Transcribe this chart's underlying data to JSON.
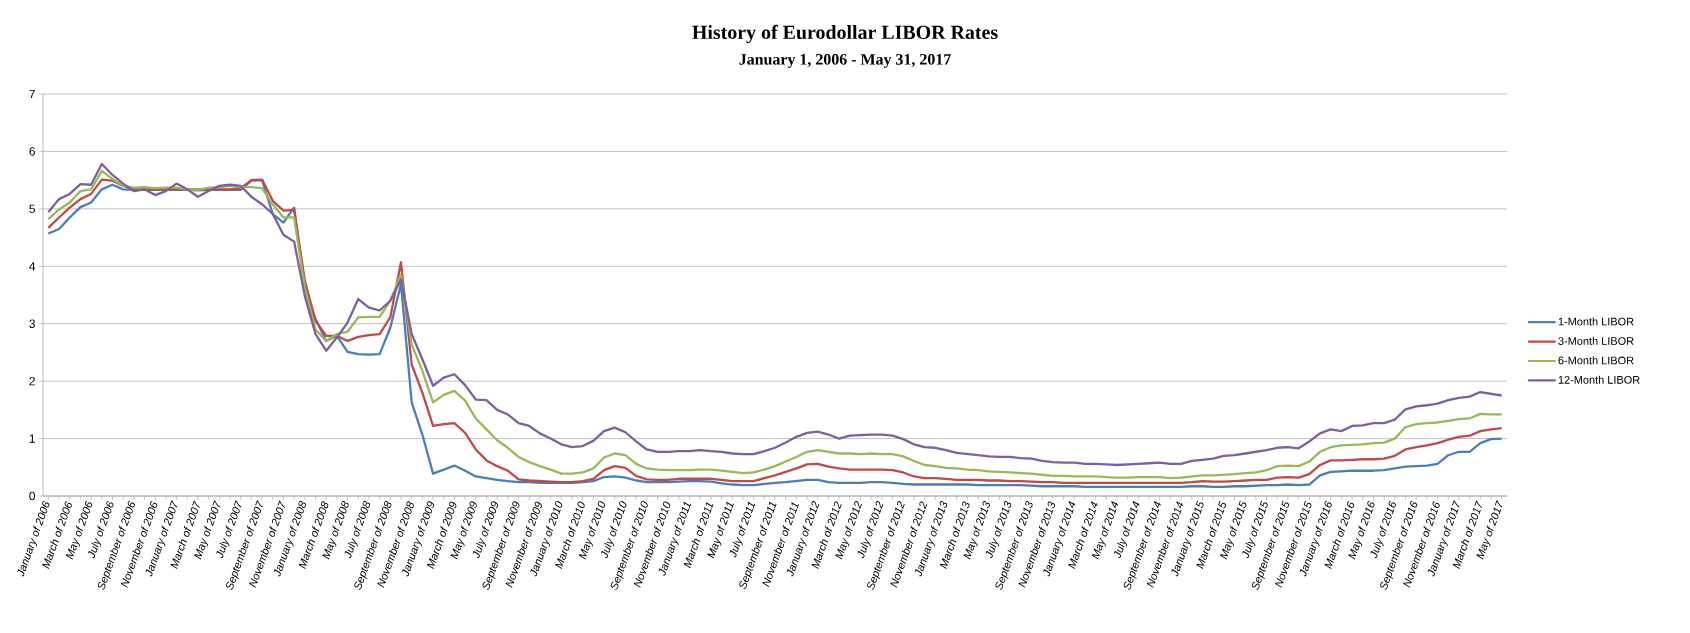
{
  "chart_data": {
    "type": "line",
    "title": "History of Eurodollar LIBOR Rates",
    "subtitle": "January 1, 2006 - May 31, 2017",
    "categories": [
      "January of 2006",
      null,
      "March of 2006",
      null,
      "May of 2006",
      null,
      "July of 2006",
      null,
      "September of 2006",
      null,
      "November of 2006",
      null,
      "January of 2007",
      null,
      "March of 2007",
      null,
      "May of 2007",
      null,
      "July of 2007",
      null,
      "September of 2007",
      null,
      "November of 2007",
      null,
      "January of 2008",
      null,
      "March of 2008",
      null,
      "May of 2008",
      null,
      "July of 2008",
      null,
      "September of 2008",
      null,
      "November of 2008",
      null,
      "January of 2009",
      null,
      "March of 2009",
      null,
      "May of 2009",
      null,
      "July of 2009",
      null,
      "September of 2009",
      null,
      "November of 2009",
      null,
      "January of 2010",
      null,
      "March of 2010",
      null,
      "May of 2010",
      null,
      "July of 2010",
      null,
      "September of 2010",
      null,
      "November of 2010",
      null,
      "January of 2011",
      null,
      "March of 2011",
      null,
      "May of 2011",
      null,
      "July of 2011",
      null,
      "September of 2011",
      null,
      "November of 2011",
      null,
      "January of 2012",
      null,
      "March of 2012",
      null,
      "May of 2012",
      null,
      "July of 2012",
      null,
      "September of 2012",
      null,
      "November of 2012",
      null,
      "January of 2013",
      null,
      "March of 2013",
      null,
      "May of 2013",
      null,
      "July of 2013",
      null,
      "September of 2013",
      null,
      "November of 2013",
      null,
      "January of 2014",
      null,
      "March of 2014",
      null,
      "May of 2014",
      null,
      "July of 2014",
      null,
      "September of 2014",
      null,
      "November of 2014",
      null,
      "January of 2015",
      null,
      "March of 2015",
      null,
      "May of 2015",
      null,
      "July of 2015",
      null,
      "September of 2015",
      null,
      "November of 2015",
      null,
      "January of 2016",
      null,
      "March of 2016",
      null,
      "May of 2016",
      null,
      "July of 2016",
      null,
      "September of 2016",
      null,
      "November of 2016",
      null,
      "January of 2017",
      null,
      "March of 2017",
      null,
      "May of 2017"
    ],
    "series": [
      {
        "name": "1-Month LIBOR",
        "color": "#4a7ebb",
        "values": [
          4.57,
          4.65,
          4.85,
          5.03,
          5.11,
          5.34,
          5.42,
          5.34,
          5.33,
          5.33,
          5.33,
          5.33,
          5.33,
          5.33,
          5.32,
          5.33,
          5.33,
          5.33,
          5.33,
          5.49,
          5.5,
          4.91,
          4.76,
          5.02,
          3.63,
          3.08,
          2.7,
          2.79,
          2.51,
          2.47,
          2.46,
          2.47,
          2.93,
          3.69,
          1.63,
          1.07,
          0.39,
          0.46,
          0.53,
          0.44,
          0.34,
          0.31,
          0.28,
          0.26,
          0.24,
          0.24,
          0.23,
          0.23,
          0.23,
          0.23,
          0.24,
          0.26,
          0.33,
          0.34,
          0.32,
          0.27,
          0.24,
          0.24,
          0.24,
          0.25,
          0.26,
          0.26,
          0.25,
          0.22,
          0.2,
          0.19,
          0.19,
          0.21,
          0.23,
          0.24,
          0.26,
          0.28,
          0.28,
          0.24,
          0.23,
          0.23,
          0.23,
          0.24,
          0.24,
          0.23,
          0.21,
          0.2,
          0.2,
          0.2,
          0.2,
          0.2,
          0.2,
          0.19,
          0.19,
          0.19,
          0.19,
          0.19,
          0.18,
          0.17,
          0.17,
          0.17,
          0.17,
          0.16,
          0.16,
          0.16,
          0.16,
          0.16,
          0.16,
          0.16,
          0.16,
          0.16,
          0.16,
          0.17,
          0.17,
          0.16,
          0.16,
          0.17,
          0.17,
          0.18,
          0.19,
          0.19,
          0.2,
          0.19,
          0.2,
          0.36,
          0.42,
          0.43,
          0.44,
          0.44,
          0.44,
          0.45,
          0.48,
          0.51,
          0.52,
          0.53,
          0.56,
          0.71,
          0.77,
          0.77,
          0.92,
          0.99,
          1.0
        ]
      },
      {
        "name": "3-Month LIBOR",
        "color": "#be4b48",
        "values": [
          4.67,
          4.85,
          5.02,
          5.17,
          5.26,
          5.51,
          5.49,
          5.4,
          5.34,
          5.34,
          5.34,
          5.34,
          5.34,
          5.34,
          5.34,
          5.34,
          5.34,
          5.34,
          5.36,
          5.5,
          5.51,
          5.14,
          4.97,
          4.98,
          3.75,
          3.05,
          2.79,
          2.79,
          2.7,
          2.77,
          2.8,
          2.82,
          3.11,
          4.07,
          2.29,
          1.8,
          1.22,
          1.25,
          1.27,
          1.1,
          0.81,
          0.62,
          0.52,
          0.44,
          0.29,
          0.27,
          0.26,
          0.25,
          0.24,
          0.24,
          0.26,
          0.3,
          0.45,
          0.52,
          0.49,
          0.35,
          0.29,
          0.28,
          0.28,
          0.3,
          0.3,
          0.3,
          0.3,
          0.28,
          0.26,
          0.26,
          0.26,
          0.31,
          0.36,
          0.42,
          0.48,
          0.55,
          0.56,
          0.51,
          0.48,
          0.46,
          0.46,
          0.46,
          0.46,
          0.45,
          0.41,
          0.34,
          0.31,
          0.31,
          0.3,
          0.28,
          0.28,
          0.28,
          0.27,
          0.27,
          0.26,
          0.26,
          0.25,
          0.24,
          0.24,
          0.23,
          0.23,
          0.23,
          0.23,
          0.23,
          0.23,
          0.23,
          0.23,
          0.23,
          0.23,
          0.23,
          0.23,
          0.24,
          0.26,
          0.25,
          0.25,
          0.26,
          0.27,
          0.28,
          0.28,
          0.32,
          0.33,
          0.32,
          0.38,
          0.54,
          0.62,
          0.62,
          0.63,
          0.64,
          0.64,
          0.65,
          0.7,
          0.81,
          0.85,
          0.88,
          0.92,
          0.98,
          1.03,
          1.05,
          1.13,
          1.16,
          1.18
        ]
      },
      {
        "name": "6-Month LIBOR",
        "color": "#98b954",
        "values": [
          4.82,
          4.99,
          5.11,
          5.31,
          5.34,
          5.66,
          5.52,
          5.4,
          5.37,
          5.38,
          5.36,
          5.37,
          5.37,
          5.34,
          5.33,
          5.37,
          5.38,
          5.4,
          5.38,
          5.38,
          5.36,
          5.08,
          4.85,
          4.85,
          3.63,
          2.9,
          2.7,
          2.82,
          2.86,
          3.11,
          3.12,
          3.12,
          3.4,
          3.86,
          2.64,
          2.18,
          1.63,
          1.76,
          1.83,
          1.66,
          1.35,
          1.16,
          0.97,
          0.84,
          0.68,
          0.59,
          0.52,
          0.46,
          0.39,
          0.39,
          0.41,
          0.48,
          0.67,
          0.74,
          0.71,
          0.56,
          0.48,
          0.46,
          0.45,
          0.45,
          0.45,
          0.46,
          0.46,
          0.44,
          0.42,
          0.4,
          0.41,
          0.46,
          0.52,
          0.6,
          0.68,
          0.77,
          0.8,
          0.77,
          0.74,
          0.74,
          0.73,
          0.74,
          0.73,
          0.73,
          0.69,
          0.61,
          0.54,
          0.52,
          0.49,
          0.48,
          0.46,
          0.45,
          0.43,
          0.42,
          0.41,
          0.4,
          0.39,
          0.37,
          0.35,
          0.35,
          0.34,
          0.34,
          0.34,
          0.33,
          0.32,
          0.32,
          0.33,
          0.33,
          0.33,
          0.31,
          0.32,
          0.34,
          0.36,
          0.36,
          0.37,
          0.38,
          0.4,
          0.41,
          0.45,
          0.52,
          0.53,
          0.52,
          0.6,
          0.77,
          0.85,
          0.88,
          0.89,
          0.9,
          0.92,
          0.93,
          1.0,
          1.2,
          1.25,
          1.27,
          1.28,
          1.31,
          1.34,
          1.35,
          1.43,
          1.42,
          1.42
        ]
      },
      {
        "name": "12-Month LIBOR",
        "color": "#7d60a0",
        "values": [
          4.94,
          5.17,
          5.26,
          5.43,
          5.42,
          5.78,
          5.59,
          5.44,
          5.31,
          5.34,
          5.24,
          5.31,
          5.44,
          5.34,
          5.21,
          5.31,
          5.4,
          5.42,
          5.4,
          5.21,
          5.08,
          4.91,
          4.55,
          4.43,
          3.48,
          2.82,
          2.53,
          2.76,
          3.02,
          3.43,
          3.28,
          3.23,
          3.4,
          3.77,
          2.82,
          2.38,
          1.92,
          2.06,
          2.12,
          1.93,
          1.68,
          1.67,
          1.5,
          1.42,
          1.27,
          1.22,
          1.09,
          1.0,
          0.9,
          0.85,
          0.87,
          0.96,
          1.13,
          1.19,
          1.11,
          0.95,
          0.81,
          0.77,
          0.77,
          0.78,
          0.78,
          0.8,
          0.78,
          0.77,
          0.74,
          0.73,
          0.73,
          0.78,
          0.84,
          0.93,
          1.03,
          1.1,
          1.12,
          1.07,
          1.0,
          1.05,
          1.06,
          1.07,
          1.07,
          1.05,
          0.99,
          0.9,
          0.85,
          0.84,
          0.8,
          0.75,
          0.73,
          0.71,
          0.69,
          0.68,
          0.68,
          0.66,
          0.65,
          0.61,
          0.59,
          0.58,
          0.58,
          0.56,
          0.56,
          0.55,
          0.54,
          0.55,
          0.56,
          0.57,
          0.58,
          0.56,
          0.56,
          0.61,
          0.63,
          0.65,
          0.7,
          0.71,
          0.74,
          0.77,
          0.8,
          0.84,
          0.85,
          0.83,
          0.95,
          1.09,
          1.16,
          1.13,
          1.22,
          1.23,
          1.27,
          1.27,
          1.33,
          1.51,
          1.56,
          1.58,
          1.61,
          1.67,
          1.71,
          1.73,
          1.81,
          1.78,
          1.75
        ]
      }
    ],
    "ylim": [
      0,
      7
    ],
    "yticks": [
      0,
      1,
      2,
      3,
      4,
      5,
      6,
      7
    ],
    "grid": "y",
    "legend": "right",
    "line_style": "solid"
  }
}
